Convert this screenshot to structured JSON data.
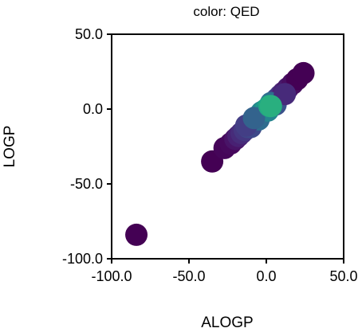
{
  "chart_data": {
    "type": "scatter",
    "title": "color: QED",
    "xlabel": "ALOGP",
    "ylabel": "LOGP",
    "xlim": [
      -100,
      50
    ],
    "ylim": [
      -100,
      50
    ],
    "x_ticks": [
      -100,
      -50,
      0,
      50
    ],
    "y_ticks": [
      -100,
      -50,
      0,
      50
    ],
    "x_tick_labels": [
      "-100.0",
      "-50.0",
      "0.0",
      "50.0"
    ],
    "y_tick_labels": [
      "-100.0",
      "-50.0",
      "0.0",
      "50.0"
    ],
    "grid": false,
    "legend": "none",
    "color_by": "QED",
    "colormap": "viridis",
    "points": [
      {
        "x": -84,
        "y": -84,
        "color": "#440154"
      },
      {
        "x": -35,
        "y": -35,
        "color": "#440154"
      },
      {
        "x": -27,
        "y": -26,
        "color": "#450559"
      },
      {
        "x": -23,
        "y": -23,
        "color": "#46085c"
      },
      {
        "x": -20,
        "y": -20,
        "color": "#481467"
      },
      {
        "x": -18,
        "y": -18,
        "color": "#482173"
      },
      {
        "x": -16,
        "y": -16,
        "color": "#472c7a"
      },
      {
        "x": -14,
        "y": -14,
        "color": "#453781"
      },
      {
        "x": -12,
        "y": -12,
        "color": "#404688"
      },
      {
        "x": -11,
        "y": -10,
        "color": "#3b518b"
      },
      {
        "x": -9,
        "y": -9,
        "color": "#365c8d"
      },
      {
        "x": -7,
        "y": -7,
        "color": "#31688e"
      },
      {
        "x": -6,
        "y": -5,
        "color": "#2c728e"
      },
      {
        "x": -4,
        "y": -4,
        "color": "#287d8e"
      },
      {
        "x": -3,
        "y": -2,
        "color": "#24868e"
      },
      {
        "x": -1,
        "y": -1,
        "color": "#21918c"
      },
      {
        "x": 0,
        "y": 0,
        "color": "#1f9a8a"
      },
      {
        "x": 2,
        "y": 1,
        "color": "#1fa188"
      },
      {
        "x": 4,
        "y": 3,
        "color": "#2a788e"
      },
      {
        "x": 5,
        "y": 5,
        "color": "#355f8d"
      },
      {
        "x": 7,
        "y": 7,
        "color": "#3e4a89"
      },
      {
        "x": 9,
        "y": 9,
        "color": "#443983"
      },
      {
        "x": 11,
        "y": 11,
        "color": "#482475"
      },
      {
        "x": 14,
        "y": 14,
        "color": "#481a6c"
      },
      {
        "x": 17,
        "y": 17,
        "color": "#470e61"
      },
      {
        "x": 20,
        "y": 20,
        "color": "#440154"
      },
      {
        "x": 24,
        "y": 24,
        "color": "#440154"
      },
      {
        "x": -10,
        "y": -12,
        "color": "#3e4989"
      },
      {
        "x": -5,
        "y": -7,
        "color": "#2f6c8e"
      },
      {
        "x": 1,
        "y": -1,
        "color": "#25848e"
      },
      {
        "x": 6,
        "y": 3,
        "color": "#3b528b"
      },
      {
        "x": -13,
        "y": -11,
        "color": "#433e85"
      },
      {
        "x": -8,
        "y": -6,
        "color": "#33638d"
      },
      {
        "x": 3,
        "y": 4,
        "color": "#2e6f8e"
      },
      {
        "x": 12,
        "y": 10,
        "color": "#472a7a"
      },
      {
        "x": 2,
        "y": 2,
        "color": "#22a884"
      },
      {
        "x": 3,
        "y": 2,
        "color": "#29af7f"
      }
    ]
  }
}
